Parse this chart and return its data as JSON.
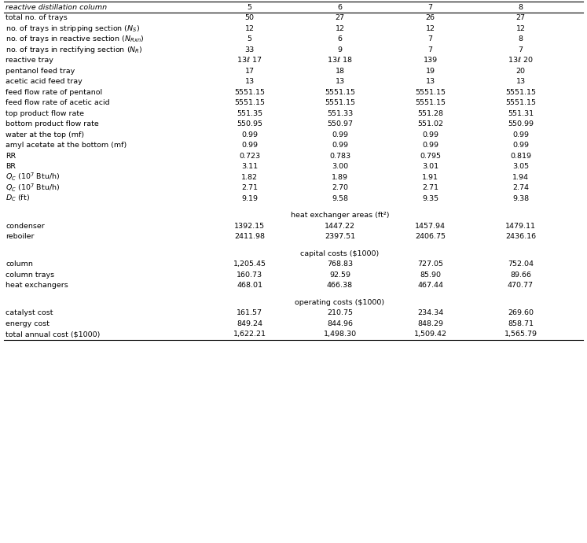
{
  "header_label": "reactive distillation column",
  "col_headers": [
    "5",
    "6",
    "7",
    "8"
  ],
  "main_rows": [
    [
      "total no. of trays",
      "50",
      "27",
      "26",
      "27"
    ],
    [
      "no. of trays in stripping section (N_S)",
      "12",
      "12",
      "12",
      "12"
    ],
    [
      "no. of trays in reactive section (N_Rxn)",
      "5",
      "6",
      "7",
      "8"
    ],
    [
      "no. of trays in rectifying section (N_R)",
      "33",
      "9",
      "7",
      "7"
    ],
    [
      "reactive tray",
      "13-17",
      "13-18",
      "139",
      "13-20"
    ],
    [
      "pentanol feed tray",
      "17",
      "18",
      "19",
      "20"
    ],
    [
      "acetic acid feed tray",
      "13",
      "13",
      "13",
      "13"
    ],
    [
      "feed flow rate of pentanol",
      "5551.15",
      "5551.15",
      "5551.15",
      "5551.15"
    ],
    [
      "feed flow rate of acetic acid",
      "5551.15",
      "5551.15",
      "5551.15",
      "5551.15"
    ],
    [
      "top product flow rate",
      "551.35",
      "551.33",
      "551.28",
      "551.31"
    ],
    [
      "bottom product flow rate",
      "550.95",
      "550.97",
      "551.02",
      "550.99"
    ],
    [
      "water at the top (mf)",
      "0.99",
      "0.99",
      "0.99",
      "0.99"
    ],
    [
      "amyl acetate at the bottom (mf)",
      "0.99",
      "0.99",
      "0.99",
      "0.99"
    ],
    [
      "RR",
      "0.723",
      "0.783",
      "0.795",
      "0.819"
    ],
    [
      "BR",
      "3.11",
      "3.00",
      "3.01",
      "3.05"
    ],
    [
      "QC_row",
      "1.82",
      "1.89",
      "1.91",
      "1.94"
    ],
    [
      "QC_row2",
      "2.71",
      "2.70",
      "2.71",
      "2.74"
    ],
    [
      "DC_row",
      "9.19",
      "9.58",
      "9.35",
      "9.38"
    ]
  ],
  "section_heat_label": "heat exchanger areas (ft²)",
  "section_heat_rows": [
    [
      "condenser",
      "1392.15",
      "1447.22",
      "1457.94",
      "1479.11"
    ],
    [
      "reboiler",
      "2411.98",
      "2397.51",
      "2406.75",
      "2436.16"
    ]
  ],
  "section_capital_label": "capital costs ($1000)",
  "section_capital_rows": [
    [
      "column",
      "1,205.45",
      "768.83",
      "727.05",
      "752.04"
    ],
    [
      "column trays",
      "160.73",
      "92.59",
      "85.90",
      "89.66"
    ],
    [
      "heat exchangers",
      "468.01",
      "466.38",
      "467.44",
      "470.77"
    ]
  ],
  "section_operating_label": "operating costs ($1000)",
  "section_operating_rows": [
    [
      "catalyst cost",
      "161.57",
      "210.75",
      "234.34",
      "269.60"
    ],
    [
      "energy cost",
      "849.24",
      "844.96",
      "848.29",
      "858.71"
    ],
    [
      "total annual cost ($1000)",
      "1,622.21",
      "1,498.30",
      "1,509.42",
      "1,565.79"
    ]
  ],
  "reactive_tray_display": [
    "13ℓ 17",
    "13ℓ 18",
    "139",
    "13ℓ 20"
  ],
  "bg_color": "#ffffff",
  "text_color": "#000000",
  "line_color": "#000000",
  "fontsize": 6.8,
  "header_fontsize": 6.8
}
